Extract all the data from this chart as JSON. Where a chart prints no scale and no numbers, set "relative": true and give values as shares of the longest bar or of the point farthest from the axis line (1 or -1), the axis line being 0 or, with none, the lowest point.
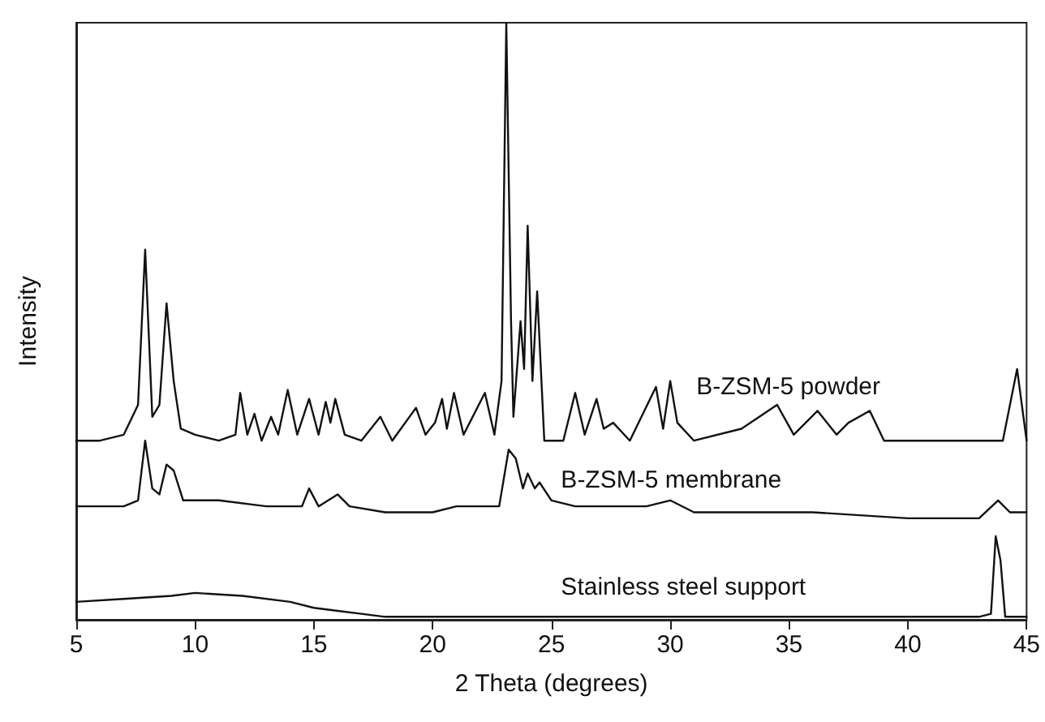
{
  "chart_data": {
    "type": "line",
    "xlabel": "2 Theta (degrees)",
    "ylabel": "Intensity",
    "relative": true,
    "xlim": [
      5,
      45
    ],
    "xticks": [
      5,
      10,
      15,
      20,
      25,
      30,
      35,
      40,
      45
    ],
    "tick_labels": "x",
    "legend": false,
    "grid": false,
    "marker": "none",
    "line_style": "solid",
    "series": [
      {
        "name": "B-ZSM-5 powder",
        "color": "#111111",
        "x": [
          5,
          6,
          7,
          7.6,
          7.9,
          8.2,
          8.5,
          8.8,
          9.1,
          9.4,
          10,
          11,
          11.7,
          11.9,
          12.2,
          12.5,
          12.8,
          13.2,
          13.5,
          13.9,
          14.3,
          14.8,
          15.2,
          15.5,
          15.7,
          15.9,
          16.3,
          17,
          17.8,
          18.3,
          19.3,
          19.7,
          20.1,
          20.4,
          20.6,
          20.9,
          21.3,
          22.2,
          22.6,
          22.9,
          23.1,
          23.3,
          23.4,
          23.7,
          23.85,
          24.0,
          24.2,
          24.4,
          24.7,
          25.5,
          26.0,
          26.4,
          26.9,
          27.2,
          27.6,
          28.3,
          29.4,
          29.7,
          30.0,
          30.3,
          31,
          33,
          34.5,
          35.2,
          36.2,
          37,
          37.5,
          38.4,
          39,
          40,
          42,
          44,
          44.6,
          45
        ],
        "values": [
          0.3,
          0.3,
          0.31,
          0.36,
          0.62,
          0.34,
          0.36,
          0.53,
          0.4,
          0.32,
          0.31,
          0.3,
          0.31,
          0.38,
          0.31,
          0.345,
          0.3,
          0.34,
          0.31,
          0.385,
          0.31,
          0.37,
          0.31,
          0.365,
          0.33,
          0.37,
          0.31,
          0.3,
          0.34,
          0.3,
          0.355,
          0.31,
          0.33,
          0.37,
          0.32,
          0.38,
          0.31,
          0.38,
          0.31,
          0.4,
          1.0,
          0.5,
          0.34,
          0.5,
          0.42,
          0.66,
          0.4,
          0.55,
          0.3,
          0.3,
          0.38,
          0.31,
          0.37,
          0.32,
          0.33,
          0.3,
          0.39,
          0.32,
          0.4,
          0.33,
          0.3,
          0.32,
          0.36,
          0.31,
          0.35,
          0.31,
          0.33,
          0.35,
          0.3,
          0.3,
          0.3,
          0.3,
          0.42,
          0.3
        ]
      },
      {
        "name": "B-ZSM-5 membrane",
        "color": "#111111",
        "x": [
          5,
          6,
          7,
          7.6,
          7.9,
          8.2,
          8.5,
          8.8,
          9.1,
          9.5,
          11,
          13,
          14.5,
          14.8,
          15.2,
          16.0,
          16.5,
          18,
          20,
          21,
          22.8,
          23.2,
          23.5,
          23.8,
          24.0,
          24.3,
          24.5,
          25.0,
          26,
          27,
          29,
          30,
          31,
          33,
          36,
          40,
          43,
          43.8,
          44.3,
          45
        ],
        "values": [
          0.19,
          0.19,
          0.19,
          0.2,
          0.3,
          0.22,
          0.21,
          0.26,
          0.25,
          0.2,
          0.2,
          0.19,
          0.19,
          0.22,
          0.19,
          0.21,
          0.19,
          0.18,
          0.18,
          0.19,
          0.19,
          0.285,
          0.27,
          0.22,
          0.245,
          0.22,
          0.23,
          0.2,
          0.19,
          0.19,
          0.19,
          0.2,
          0.18,
          0.18,
          0.18,
          0.17,
          0.17,
          0.2,
          0.18,
          0.18
        ]
      },
      {
        "name": "Stainless steel support",
        "color": "#111111",
        "x": [
          5,
          7,
          9,
          10,
          12,
          14,
          15,
          16,
          17,
          18,
          20,
          25,
          30,
          35,
          40,
          43,
          43.5,
          43.7,
          43.9,
          44.1,
          45
        ],
        "values": [
          0.03,
          0.035,
          0.04,
          0.045,
          0.04,
          0.03,
          0.02,
          0.015,
          0.01,
          0.005,
          0.005,
          0.005,
          0.005,
          0.005,
          0.005,
          0.005,
          0.01,
          0.14,
          0.1,
          0.005,
          0.005
        ]
      }
    ]
  }
}
